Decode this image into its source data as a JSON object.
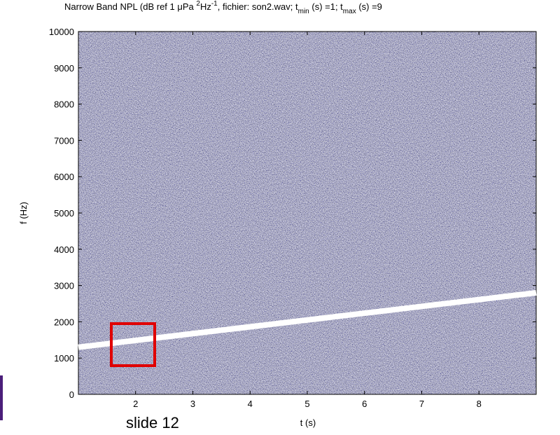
{
  "chart_data": {
    "type": "spectrogram",
    "title": [
      "Narrow Band NPL (dB ref 1 μPa ",
      "2",
      "Hz",
      "-1",
      ", fichier: son2.wav; t",
      "min",
      " (s) =1; t",
      "max",
      " (s) =9"
    ],
    "xlabel": "t (s)",
    "ylabel": "f (Hz)",
    "xlim": [
      1,
      9
    ],
    "xticks": [
      2,
      3,
      4,
      5,
      6,
      7,
      8
    ],
    "ylim": [
      0,
      10000
    ],
    "yticks": [
      0,
      1000,
      2000,
      3000,
      4000,
      5000,
      6000,
      7000,
      8000,
      9000,
      10000
    ],
    "series": [
      {
        "color": "#ffffff",
        "x": [
          1,
          9
        ],
        "values": [
          1300,
          2800
        ]
      }
    ],
    "annotation": "slide 12"
  }
}
